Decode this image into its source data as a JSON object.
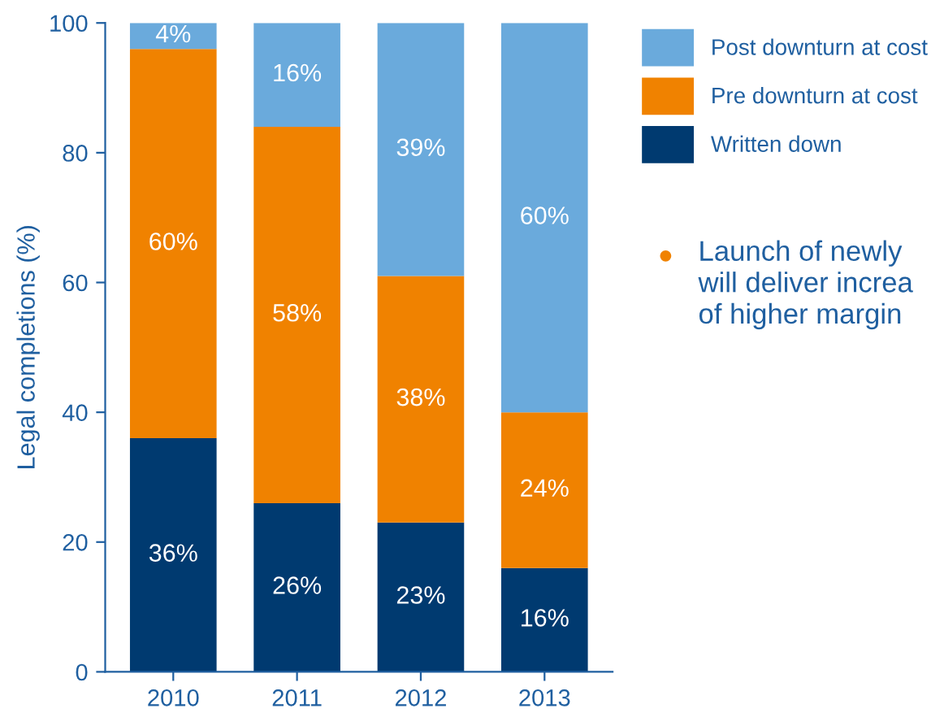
{
  "chart_data": {
    "type": "bar",
    "stacked": true,
    "ylabel": "Legal completions (%)",
    "categories": [
      "2010",
      "2011",
      "2012",
      "2013"
    ],
    "series": [
      {
        "name": "Written down",
        "color": "#003a70",
        "values": [
          36,
          26,
          23,
          16
        ],
        "value_labels": [
          "36%",
          "26%",
          "23%",
          "16%"
        ]
      },
      {
        "name": "Pre downturn at cost",
        "color": "#f08200",
        "values": [
          60,
          58,
          38,
          24
        ],
        "value_labels": [
          "60%",
          "58%",
          "38%",
          "24%"
        ]
      },
      {
        "name": "Post downturn at cost",
        "color": "#6aaadc",
        "values": [
          4,
          16,
          39,
          60
        ],
        "value_labels": [
          "4%",
          "16%",
          "39%",
          "60%"
        ]
      }
    ],
    "ylim": [
      0,
      100
    ],
    "yticks": [
      0,
      20,
      40,
      60,
      80,
      100
    ],
    "grid": false,
    "legend": "top right",
    "annotations": [
      "Launch of newly\nwill deliver increa\nof higher margin"
    ]
  }
}
